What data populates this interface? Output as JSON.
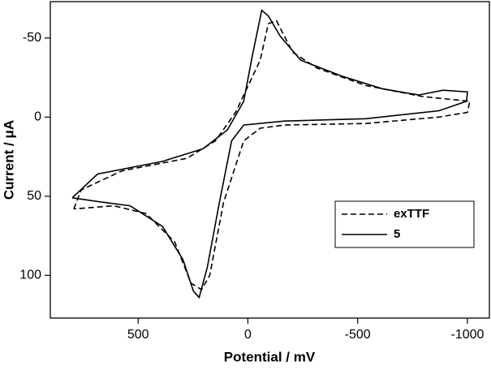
{
  "chart_data": {
    "type": "line",
    "x_label": "Potential / mV",
    "y_label": "Current / μA",
    "xlim": [
      900,
      -1100
    ],
    "xticks": [
      500,
      0,
      -500,
      -1000
    ],
    "ylim": [
      127,
      -73
    ],
    "yticks": [
      -50,
      0,
      50,
      100
    ],
    "legend": "lower right",
    "series": [
      {
        "name": "exTTF",
        "color": "#000000",
        "style": "dashed",
        "x": [
          793,
          759,
          574,
          278,
          148,
          56,
          -56,
          -93,
          -130,
          -204,
          -315,
          -537,
          -796,
          -1011,
          -1000,
          -870,
          -537,
          -167,
          -56,
          19,
          111,
          174,
          211,
          259,
          333,
          463,
          611,
          793
        ],
        "values": [
          58,
          46,
          34,
          26,
          15,
          -3,
          -36,
          -59,
          -61,
          -41,
          -31,
          -20,
          -13,
          -10,
          -3,
          0,
          4,
          5,
          7,
          15,
          54,
          100,
          109,
          105,
          79,
          61,
          56,
          58
        ]
      },
      {
        "name": "5",
        "color": "#000000",
        "style": "solid",
        "x": [
          800,
          685,
          389,
          204,
          93,
          19,
          -19,
          -63,
          -93,
          -148,
          -241,
          -426,
          -611,
          -778,
          -889,
          -1000,
          -996,
          -870,
          -537,
          -167,
          19,
          74,
          130,
          185,
          222,
          248,
          296,
          389,
          537,
          648,
          800
        ],
        "values": [
          51,
          36,
          28,
          20,
          8,
          -10,
          -38,
          -67.5,
          -64,
          -51,
          -36,
          -26,
          -18,
          -14,
          -17,
          -16,
          -10,
          -4,
          1,
          2.5,
          5,
          15,
          54,
          95,
          114,
          110,
          90,
          69,
          56,
          54,
          51
        ]
      }
    ]
  }
}
